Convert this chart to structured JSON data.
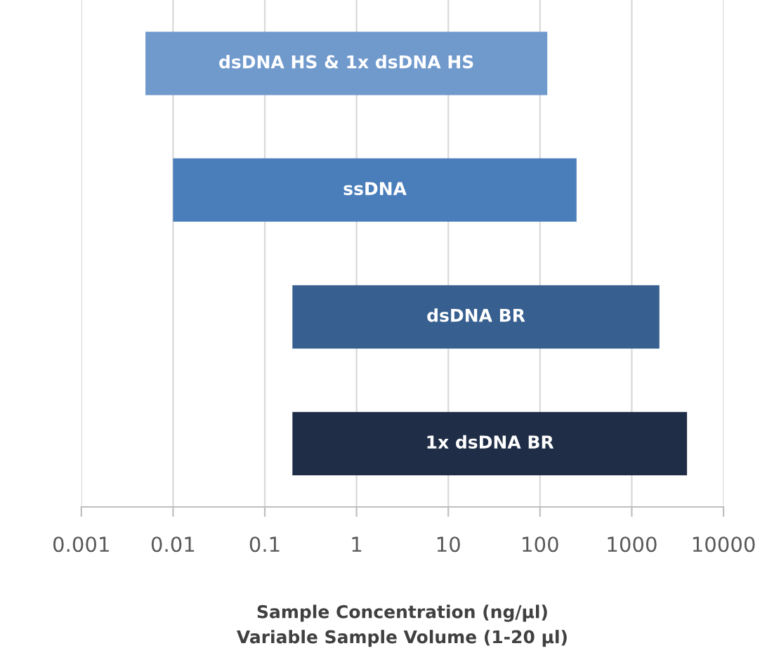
{
  "chart_data": {
    "type": "bar",
    "orientation": "horizontal",
    "log": "x",
    "categories": [
      "dsDNA HS & 1x dsDNA HS",
      "ssDNA",
      "dsDNA BR",
      "1x dsDNA BR"
    ],
    "base": [
      0.005,
      0.01,
      0.2,
      0.2
    ],
    "values": [
      119.995,
      249.99,
      1999.8,
      3999.8
    ],
    "colors": [
      "#7099cc",
      "#4a7ebb",
      "#375f8f",
      "#1f2d47"
    ],
    "xlim": [
      0.001,
      10000
    ],
    "xticks": [
      0.001,
      0.01,
      0.1,
      1,
      10,
      100,
      1000,
      10000
    ],
    "xlabel": "Sample Concentration (ng/µl)\nVariable Sample Volume (1-20 µl)",
    "grid": "x",
    "tick_labels": "x"
  }
}
